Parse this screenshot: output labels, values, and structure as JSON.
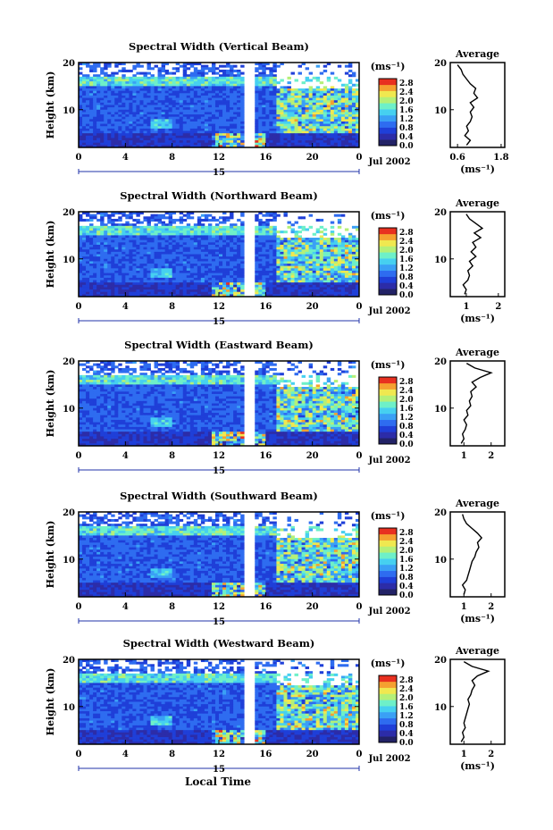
{
  "figure": {
    "x_axis_title": "Local Time",
    "date_label": "Jul 2002",
    "day_label": "15",
    "y_axis_title": "Height (km)",
    "colorbar_unit": "(ms⁻¹)",
    "average_title": "Average",
    "average_unit": "(ms⁻¹)"
  },
  "chart_data": [
    {
      "type": "heatmap",
      "title": "Spectral Width (Vertical Beam)",
      "xlabel": "",
      "ylabel": "Height (km)",
      "x_ticks": [
        "0",
        "4",
        "8",
        "12",
        "16",
        "20",
        "0"
      ],
      "xlim": [
        0,
        24
      ],
      "y_ticks": [
        "10",
        "20"
      ],
      "ylim": [
        2,
        20
      ],
      "colorbar_ticks": [
        "0.0",
        "0.4",
        "0.8",
        "1.2",
        "1.6",
        "2.0",
        "2.4",
        "2.8"
      ],
      "colorbar_range": [
        0,
        3.0
      ],
      "average_profile": {
        "xlabel": "(ms⁻¹)",
        "x_ticks": [
          "0.6",
          "1.8"
        ],
        "xlim": [
          0.4,
          1.9
        ],
        "heights": [
          2.5,
          3.5,
          4.5,
          5.5,
          6.5,
          7.5,
          8.5,
          9.5,
          10.5,
          11.5,
          12.5,
          13.5,
          14.5,
          15.5,
          16.5,
          17.5,
          18.5,
          19.5
        ],
        "values": [
          0.85,
          0.95,
          0.8,
          0.9,
          0.85,
          0.95,
          1.0,
          0.95,
          1.05,
          0.95,
          1.15,
          1.05,
          1.1,
          0.95,
          0.85,
          0.75,
          0.7,
          0.6
        ]
      }
    },
    {
      "type": "heatmap",
      "title": "Spectral Width (Northward Beam)",
      "xlabel": "",
      "ylabel": "Height (km)",
      "x_ticks": [
        "0",
        "4",
        "8",
        "12",
        "16",
        "20",
        "0"
      ],
      "xlim": [
        0,
        24
      ],
      "y_ticks": [
        "10",
        "20"
      ],
      "ylim": [
        2,
        20
      ],
      "colorbar_ticks": [
        "0.0",
        "0.4",
        "0.8",
        "1.2",
        "1.6",
        "2.0",
        "2.4",
        "2.8"
      ],
      "colorbar_range": [
        0,
        3.0
      ],
      "average_profile": {
        "xlabel": "(ms⁻¹)",
        "x_ticks": [
          "1",
          "2"
        ],
        "xlim": [
          0.5,
          2.2
        ],
        "heights": [
          2.5,
          3.5,
          4.5,
          5.5,
          6.5,
          7.5,
          8.5,
          9.5,
          10.5,
          11.5,
          12.5,
          13.5,
          14.5,
          15.5,
          16.5,
          17.5,
          18.5,
          19.5
        ],
        "values": [
          0.95,
          1.0,
          0.9,
          1.05,
          1.1,
          1.05,
          1.2,
          1.1,
          1.3,
          1.15,
          1.3,
          1.2,
          1.45,
          1.25,
          1.5,
          1.3,
          1.1,
          1.0
        ]
      }
    },
    {
      "type": "heatmap",
      "title": "Spectral Width (Eastward Beam)",
      "xlabel": "",
      "ylabel": "Height (km)",
      "x_ticks": [
        "0",
        "4",
        "8",
        "12",
        "16",
        "20",
        "0"
      ],
      "xlim": [
        0,
        24
      ],
      "y_ticks": [
        "10",
        "20"
      ],
      "ylim": [
        2,
        20
      ],
      "colorbar_ticks": [
        "0.0",
        "0.4",
        "0.8",
        "1.2",
        "1.6",
        "2.0",
        "2.4",
        "2.8"
      ],
      "colorbar_range": [
        0,
        3.0
      ],
      "average_profile": {
        "xlabel": "",
        "x_ticks": [
          "1",
          "2"
        ],
        "xlim": [
          0.5,
          2.5
        ],
        "heights": [
          2.5,
          3.5,
          4.5,
          5.5,
          6.5,
          7.5,
          8.5,
          9.5,
          10.5,
          11.5,
          12.5,
          13.5,
          14.5,
          15.5,
          16.5,
          17.5,
          18.5,
          19.5
        ],
        "values": [
          0.9,
          1.0,
          0.95,
          1.05,
          1.1,
          1.0,
          1.15,
          1.1,
          1.25,
          1.2,
          1.3,
          1.25,
          1.45,
          1.3,
          1.6,
          2.0,
          1.4,
          1.1
        ]
      }
    },
    {
      "type": "heatmap",
      "title": "Spectral Width (Southward Beam)",
      "xlabel": "",
      "ylabel": "Height (km)",
      "x_ticks": [
        "0",
        "4",
        "8",
        "12",
        "16",
        "20",
        "0"
      ],
      "xlim": [
        0,
        24
      ],
      "y_ticks": [
        "10",
        "20"
      ],
      "ylim": [
        2,
        20
      ],
      "colorbar_ticks": [
        "0.0",
        "0.4",
        "0.8",
        "1.2",
        "1.6",
        "2.0",
        "2.4",
        "2.8"
      ],
      "colorbar_range": [
        0,
        3.0
      ],
      "average_profile": {
        "xlabel": "(ms⁻¹)",
        "x_ticks": [
          "1",
          "2"
        ],
        "xlim": [
          0.5,
          2.5
        ],
        "heights": [
          2.5,
          3.5,
          4.5,
          5.5,
          6.5,
          7.5,
          8.5,
          9.5,
          10.5,
          11.5,
          12.5,
          13.5,
          14.5,
          15.5,
          16.5,
          17.5,
          18.5,
          19.5
        ],
        "values": [
          1.0,
          1.05,
          0.95,
          1.1,
          1.15,
          1.2,
          1.25,
          1.3,
          1.4,
          1.45,
          1.55,
          1.5,
          1.65,
          1.5,
          1.3,
          1.1,
          1.0,
          0.95
        ]
      }
    },
    {
      "type": "heatmap",
      "title": "Spectral Width (Westward Beam)",
      "xlabel": "Local Time",
      "ylabel": "Height (km)",
      "x_ticks": [
        "0",
        "4",
        "8",
        "12",
        "16",
        "20",
        "0"
      ],
      "xlim": [
        0,
        24
      ],
      "y_ticks": [
        "10",
        "20"
      ],
      "ylim": [
        2,
        20
      ],
      "colorbar_ticks": [
        "0.0",
        "0.4",
        "0.8",
        "1.2",
        "1.6",
        "2.0",
        "2.4",
        "2.8"
      ],
      "colorbar_range": [
        0,
        3.0
      ],
      "average_profile": {
        "xlabel": "(ms⁻¹)",
        "x_ticks": [
          "1",
          "2"
        ],
        "xlim": [
          0.5,
          2.5
        ],
        "heights": [
          2.5,
          3.5,
          4.5,
          5.5,
          6.5,
          7.5,
          8.5,
          9.5,
          10.5,
          11.5,
          12.5,
          13.5,
          14.5,
          15.5,
          16.5,
          17.5,
          18.5,
          19.5
        ],
        "values": [
          0.9,
          1.0,
          0.95,
          1.05,
          1.0,
          1.05,
          1.1,
          1.15,
          1.2,
          1.15,
          1.25,
          1.3,
          1.4,
          1.3,
          1.5,
          1.9,
          1.3,
          1.0
        ]
      }
    }
  ]
}
